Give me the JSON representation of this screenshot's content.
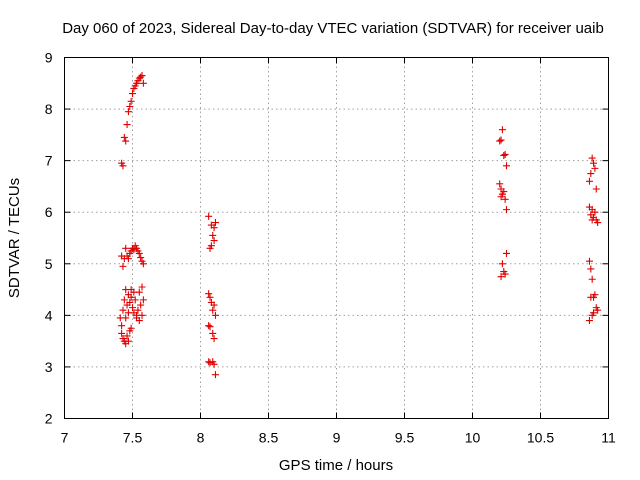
{
  "chart_data": {
    "type": "scatter",
    "title": "Day 060 of 2023, Sidereal Day-to-day VTEC variation (SDTVAR) for receiver uaib",
    "xlabel": "GPS time / hours",
    "ylabel": "SDTVAR / TECUs",
    "xlim": [
      7,
      11
    ],
    "ylim": [
      2,
      9
    ],
    "xticks": [
      "7",
      "7.5",
      "8",
      "8.5",
      "9",
      "9.5",
      "10",
      "10.5",
      "11"
    ],
    "yticks": [
      "2",
      "3",
      "4",
      "5",
      "6",
      "7",
      "8",
      "9"
    ],
    "grid": true,
    "marker": "plus",
    "color": "#e00000",
    "series": [
      {
        "name": "SDTVAR",
        "points": [
          [
            7.42,
            6.95
          ],
          [
            7.43,
            6.9
          ],
          [
            7.44,
            7.45
          ],
          [
            7.45,
            7.38
          ],
          [
            7.46,
            7.7
          ],
          [
            7.47,
            7.95
          ],
          [
            7.48,
            8.05
          ],
          [
            7.49,
            8.15
          ],
          [
            7.5,
            8.3
          ],
          [
            7.51,
            8.4
          ],
          [
            7.52,
            8.45
          ],
          [
            7.53,
            8.5
          ],
          [
            7.54,
            8.55
          ],
          [
            7.55,
            8.6
          ],
          [
            7.56,
            8.62
          ],
          [
            7.57,
            8.65
          ],
          [
            7.58,
            8.5
          ],
          [
            7.42,
            5.15
          ],
          [
            7.43,
            4.95
          ],
          [
            7.44,
            5.1
          ],
          [
            7.45,
            5.3
          ],
          [
            7.46,
            5.15
          ],
          [
            7.47,
            5.1
          ],
          [
            7.48,
            5.2
          ],
          [
            7.49,
            5.25
          ],
          [
            7.5,
            5.3
          ],
          [
            7.51,
            5.28
          ],
          [
            7.52,
            5.35
          ],
          [
            7.53,
            5.3
          ],
          [
            7.54,
            5.25
          ],
          [
            7.55,
            5.2
          ],
          [
            7.56,
            5.12
          ],
          [
            7.57,
            5.05
          ],
          [
            7.58,
            5.0
          ],
          [
            7.41,
            3.95
          ],
          [
            7.42,
            3.8
          ],
          [
            7.43,
            4.1
          ],
          [
            7.44,
            4.3
          ],
          [
            7.45,
            4.5
          ],
          [
            7.46,
            4.2
          ],
          [
            7.47,
            4.4
          ],
          [
            7.48,
            4.25
          ],
          [
            7.49,
            4.35
          ],
          [
            7.5,
            4.15
          ],
          [
            7.51,
            4.05
          ],
          [
            7.52,
            4.3
          ],
          [
            7.53,
            4.0
          ],
          [
            7.54,
            4.1
          ],
          [
            7.55,
            4.45
          ],
          [
            7.56,
            4.2
          ],
          [
            7.57,
            4.55
          ],
          [
            7.58,
            4.3
          ],
          [
            7.45,
            3.95
          ],
          [
            7.47,
            4.05
          ],
          [
            7.49,
            4.5
          ],
          [
            7.51,
            4.45
          ],
          [
            7.53,
            3.95
          ],
          [
            7.55,
            3.9
          ],
          [
            7.57,
            4.0
          ],
          [
            7.42,
            3.65
          ],
          [
            7.43,
            3.55
          ],
          [
            7.44,
            3.5
          ],
          [
            7.45,
            3.45
          ],
          [
            7.46,
            3.6
          ],
          [
            7.47,
            3.5
          ],
          [
            7.48,
            3.7
          ],
          [
            7.49,
            3.75
          ],
          [
            8.06,
            5.92
          ],
          [
            8.07,
            5.3
          ],
          [
            8.08,
            5.75
          ],
          [
            8.09,
            5.55
          ],
          [
            8.1,
            5.7
          ],
          [
            8.11,
            5.8
          ],
          [
            8.08,
            5.35
          ],
          [
            8.1,
            5.45
          ],
          [
            8.06,
            4.42
          ],
          [
            8.07,
            4.35
          ],
          [
            8.08,
            4.25
          ],
          [
            8.09,
            4.1
          ],
          [
            8.1,
            4.2
          ],
          [
            8.11,
            4.0
          ],
          [
            8.06,
            3.8
          ],
          [
            8.07,
            3.78
          ],
          [
            8.09,
            3.65
          ],
          [
            8.1,
            3.55
          ],
          [
            8.06,
            3.1
          ],
          [
            8.07,
            3.08
          ],
          [
            8.09,
            3.1
          ],
          [
            8.1,
            3.05
          ],
          [
            8.11,
            2.85
          ],
          [
            10.2,
            7.38
          ],
          [
            10.21,
            7.4
          ],
          [
            10.22,
            7.6
          ],
          [
            10.23,
            7.1
          ],
          [
            10.24,
            7.12
          ],
          [
            10.25,
            6.9
          ],
          [
            10.2,
            6.55
          ],
          [
            10.21,
            6.45
          ],
          [
            10.22,
            6.35
          ],
          [
            10.23,
            6.4
          ],
          [
            10.24,
            6.25
          ],
          [
            10.25,
            6.05
          ],
          [
            10.21,
            6.3
          ],
          [
            10.22,
            5.0
          ],
          [
            10.23,
            4.85
          ],
          [
            10.24,
            4.8
          ],
          [
            10.25,
            5.2
          ],
          [
            10.21,
            4.75
          ],
          [
            10.86,
            6.6
          ],
          [
            10.87,
            6.75
          ],
          [
            10.88,
            7.05
          ],
          [
            10.89,
            6.95
          ],
          [
            10.9,
            6.85
          ],
          [
            10.91,
            6.45
          ],
          [
            10.86,
            6.1
          ],
          [
            10.87,
            5.95
          ],
          [
            10.88,
            6.05
          ],
          [
            10.89,
            5.9
          ],
          [
            10.9,
            6.0
          ],
          [
            10.91,
            5.85
          ],
          [
            10.92,
            5.8
          ],
          [
            10.88,
            5.85
          ],
          [
            10.86,
            5.05
          ],
          [
            10.87,
            4.9
          ],
          [
            10.88,
            4.7
          ],
          [
            10.89,
            4.35
          ],
          [
            10.9,
            4.4
          ],
          [
            10.91,
            4.15
          ],
          [
            10.92,
            4.1
          ],
          [
            10.87,
            4.35
          ],
          [
            10.89,
            4.05
          ],
          [
            10.86,
            3.9
          ],
          [
            10.88,
            4.0
          ]
        ]
      }
    ]
  }
}
